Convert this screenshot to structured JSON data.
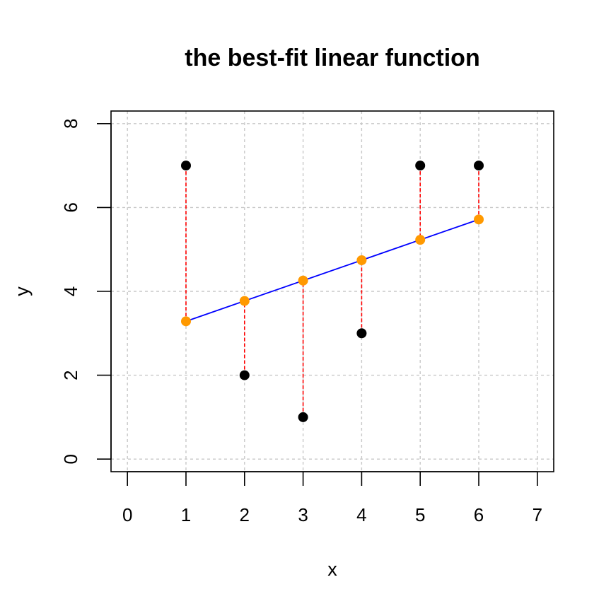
{
  "chart_data": {
    "type": "scatter",
    "title": "the best-fit linear function",
    "xlabel": "x",
    "ylabel": "y",
    "xlim": [
      -0.28,
      7.28
    ],
    "ylim": [
      -0.3,
      8.3
    ],
    "x_ticks": [
      0,
      1,
      2,
      3,
      4,
      5,
      6,
      7
    ],
    "y_ticks": [
      0,
      2,
      4,
      6,
      8
    ],
    "grid": true,
    "observed": {
      "x": [
        1,
        2,
        3,
        4,
        5,
        6
      ],
      "y": [
        7,
        2,
        1,
        3,
        7,
        7
      ],
      "color": "#000000"
    },
    "fitted": {
      "x": [
        1,
        2,
        3,
        4,
        5,
        6
      ],
      "y": [
        3.286,
        3.771,
        4.257,
        4.743,
        5.229,
        5.714
      ],
      "color": "#FF9900"
    },
    "fit_line": {
      "intercept": 2.8,
      "slope": 0.4857,
      "x_range": [
        1,
        6
      ],
      "color": "#0000FF"
    },
    "residual_color": "#FF0000"
  }
}
